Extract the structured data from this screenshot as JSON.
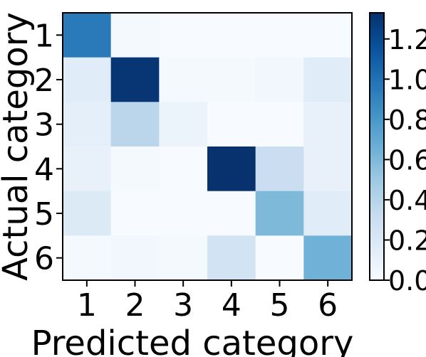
{
  "chart_data": {
    "type": "heatmap",
    "title": "",
    "xlabel": "Predicted category",
    "ylabel": "Actual category",
    "x_categories": [
      "1",
      "2",
      "3",
      "4",
      "5",
      "6"
    ],
    "y_categories": [
      "1",
      "2",
      "3",
      "4",
      "5",
      "6"
    ],
    "values": [
      [
        0.95,
        0.02,
        0.0,
        0.0,
        0.0,
        0.0
      ],
      [
        0.15,
        1.3,
        0.02,
        0.02,
        0.04,
        0.15
      ],
      [
        0.12,
        0.38,
        0.08,
        0.0,
        0.0,
        0.1
      ],
      [
        0.1,
        0.02,
        0.0,
        1.32,
        0.3,
        0.1
      ],
      [
        0.18,
        0.0,
        0.0,
        0.0,
        0.6,
        0.15
      ],
      [
        0.02,
        0.04,
        0.02,
        0.25,
        0.0,
        0.65
      ]
    ],
    "colorbar": {
      "range": [
        0.0,
        1.33
      ],
      "ticks": [
        "0.0",
        "0.2",
        "0.4",
        "0.6",
        "0.8",
        "1.0",
        "1.2"
      ],
      "colormap": "Blues"
    }
  }
}
